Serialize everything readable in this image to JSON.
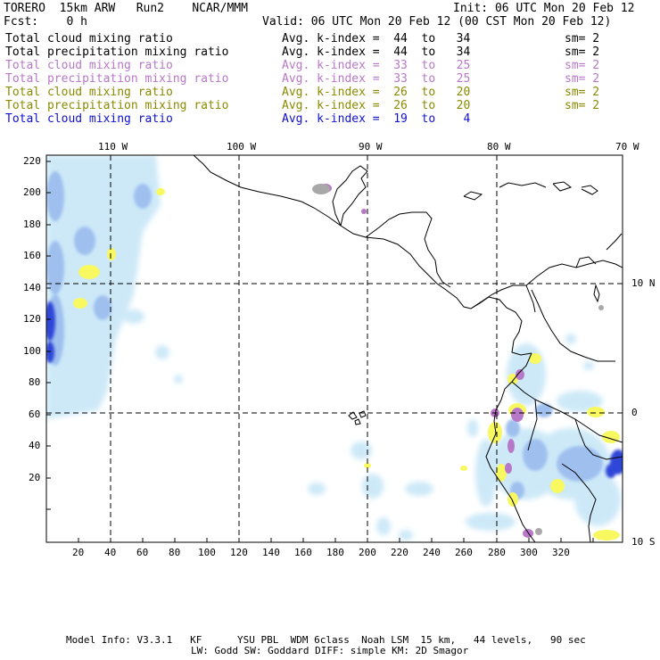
{
  "header": {
    "left_title": "TORERO  15km ARW   Run2    NCAR/MMM",
    "init": "Init: 06 UTC Mon 20 Feb 12",
    "fcst": "Fcst:    0 h",
    "valid": "Valid: 06 UTC Mon 20 Feb 12 (00 CST Mon 20 Feb 12)"
  },
  "legend": [
    {
      "field": "Total cloud mixing ratio",
      "kindex": "Avg. k-index =  44  to   34",
      "sm": "sm= 2",
      "color": "#000000"
    },
    {
      "field": "Total precipitation mixing ratio",
      "kindex": "Avg. k-index =  44  to   34",
      "sm": "sm= 2",
      "color": "#000000"
    },
    {
      "field": "Total cloud mixing ratio",
      "kindex": "Avg. k-index =  33  to   25",
      "sm": "sm= 2",
      "color": "#b878c8"
    },
    {
      "field": "Total precipitation mixing ratio",
      "kindex": "Avg. k-index =  33  to   25",
      "sm": "sm= 2",
      "color": "#b878c8"
    },
    {
      "field": "Total cloud mixing ratio",
      "kindex": "Avg. k-index =  26  to   20",
      "sm": "sm= 2",
      "color": "#8a8a00"
    },
    {
      "field": "Total precipitation mixing ratio",
      "kindex": "Avg. k-index =  26  to   20",
      "sm": "sm= 2",
      "color": "#8a8a00"
    },
    {
      "field": "Total cloud mixing ratio",
      "kindex": "Avg. k-index =  19  to    4",
      "sm": "",
      "color": "#1010d0"
    }
  ],
  "map": {
    "lon_labels": [
      "110 W",
      "100 W",
      "90 W",
      "80 W",
      "70 W"
    ],
    "lat_labels": [
      "10 N",
      "0",
      "10 S"
    ],
    "y_ticks": [
      "220",
      "200",
      "180",
      "160",
      "140",
      "120",
      "100",
      "80",
      "60",
      "40",
      "20"
    ],
    "x_ticks": [
      "20",
      "40",
      "60",
      "80",
      "100",
      "120",
      "140",
      "160",
      "180",
      "200",
      "220",
      "240",
      "260",
      "280",
      "300",
      "320"
    ],
    "colors": {
      "cloud_light": "#cde9f8",
      "cloud_mid": "#9bbdf0",
      "cloud_dark": "#2a3fd8",
      "yellow": "#f8f860",
      "purple": "#b878c8",
      "gray": "#a8a8a8"
    }
  },
  "footer": {
    "line1": "Model Info: V3.3.1   KF      YSU PBL  WDM 6class  Noah LSM  15 km,   44 levels,   90 sec",
    "line2": "LW: Godd SW: Goddard DIFF: simple KM: 2D Smagor"
  }
}
